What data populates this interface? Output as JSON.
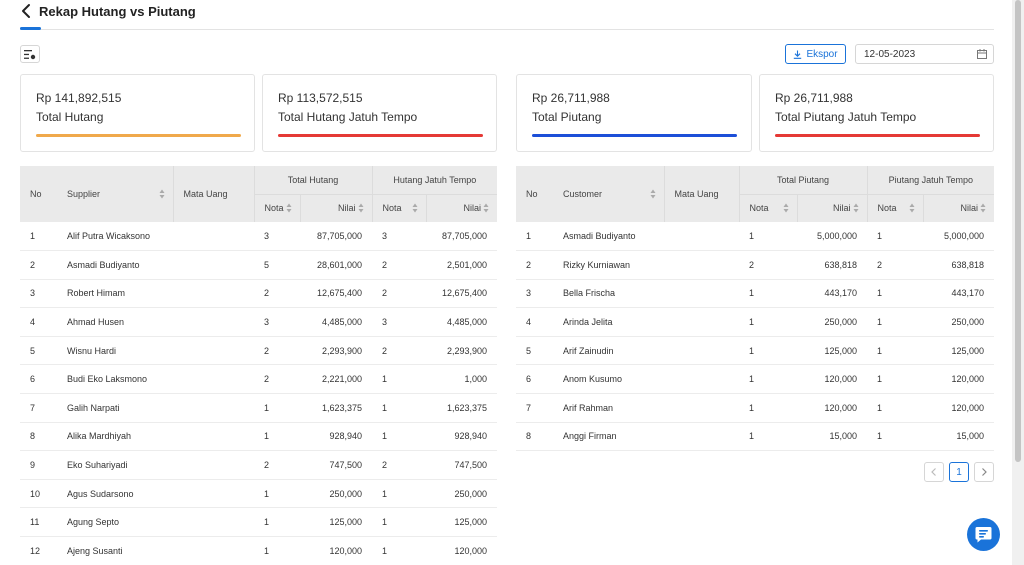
{
  "header": {
    "title": "Rekap Hutang vs Piutang"
  },
  "toolbar": {
    "export_label": "Ekspor",
    "date_value": "12-05-2023"
  },
  "colors": {
    "accent": "#1a73d9",
    "orange": "#f0a94b",
    "red": "#e53935",
    "blue": "#1c4fd8"
  },
  "cards": [
    {
      "amount": "Rp 141,892,515",
      "label": "Total Hutang"
    },
    {
      "amount": "Rp 113,572,515",
      "label": "Total Hutang Jatuh Tempo"
    },
    {
      "amount": "Rp 26,711,988",
      "label": "Total Piutang"
    },
    {
      "amount": "Rp 26,711,988",
      "label": "Total Piutang Jatuh Tempo"
    }
  ],
  "hutang_table": {
    "headers": {
      "no": "No",
      "party": "Supplier",
      "currency": "Mata Uang",
      "group1": "Total Hutang",
      "group2": "Hutang Jatuh Tempo",
      "nota": "Nota",
      "nilai": "Nilai"
    },
    "rows": [
      [
        "1",
        "Alif Putra Wicaksono",
        "",
        "3",
        "87,705,000",
        "3",
        "87,705,000"
      ],
      [
        "2",
        "Asmadi Budiyanto",
        "",
        "5",
        "28,601,000",
        "2",
        "2,501,000"
      ],
      [
        "3",
        "Robert Himam",
        "",
        "2",
        "12,675,400",
        "2",
        "12,675,400"
      ],
      [
        "4",
        "Ahmad Husen",
        "",
        "3",
        "4,485,000",
        "3",
        "4,485,000"
      ],
      [
        "5",
        "Wisnu Hardi",
        "",
        "2",
        "2,293,900",
        "2",
        "2,293,900"
      ],
      [
        "6",
        "Budi Eko Laksmono",
        "",
        "2",
        "2,221,000",
        "1",
        "1,000"
      ],
      [
        "7",
        "Galih Narpati",
        "",
        "1",
        "1,623,375",
        "1",
        "1,623,375"
      ],
      [
        "8",
        "Alika Mardhiyah",
        "",
        "1",
        "928,940",
        "1",
        "928,940"
      ],
      [
        "9",
        "Eko Suhariyadi",
        "",
        "2",
        "747,500",
        "2",
        "747,500"
      ],
      [
        "10",
        "Agus Sudarsono",
        "",
        "1",
        "250,000",
        "1",
        "250,000"
      ],
      [
        "11",
        "Agung Septo",
        "",
        "1",
        "125,000",
        "1",
        "125,000"
      ],
      [
        "12",
        "Ajeng Susanti",
        "",
        "1",
        "120,000",
        "1",
        "120,000"
      ]
    ]
  },
  "piutang_table": {
    "headers": {
      "no": "No",
      "party": "Customer",
      "currency": "Mata Uang",
      "group1": "Total Piutang",
      "group2": "Piutang Jatuh Tempo",
      "nota": "Nota",
      "nilai": "Nilai"
    },
    "rows": [
      [
        "1",
        "Asmadi Budiyanto",
        "",
        "1",
        "5,000,000",
        "1",
        "5,000,000"
      ],
      [
        "2",
        "Rizky Kurniawan",
        "",
        "2",
        "638,818",
        "2",
        "638,818"
      ],
      [
        "3",
        "Bella Frischa",
        "",
        "1",
        "443,170",
        "1",
        "443,170"
      ],
      [
        "4",
        "Arinda Jelita",
        "",
        "1",
        "250,000",
        "1",
        "250,000"
      ],
      [
        "5",
        "Arif Zainudin",
        "",
        "1",
        "125,000",
        "1",
        "125,000"
      ],
      [
        "6",
        "Anom Kusumo",
        "",
        "1",
        "120,000",
        "1",
        "120,000"
      ],
      [
        "7",
        "Arif Rahman",
        "",
        "1",
        "120,000",
        "1",
        "120,000"
      ],
      [
        "8",
        "Anggi Firman",
        "",
        "1",
        "15,000",
        "1",
        "15,000"
      ]
    ]
  },
  "pagination": {
    "current_page": "1"
  }
}
